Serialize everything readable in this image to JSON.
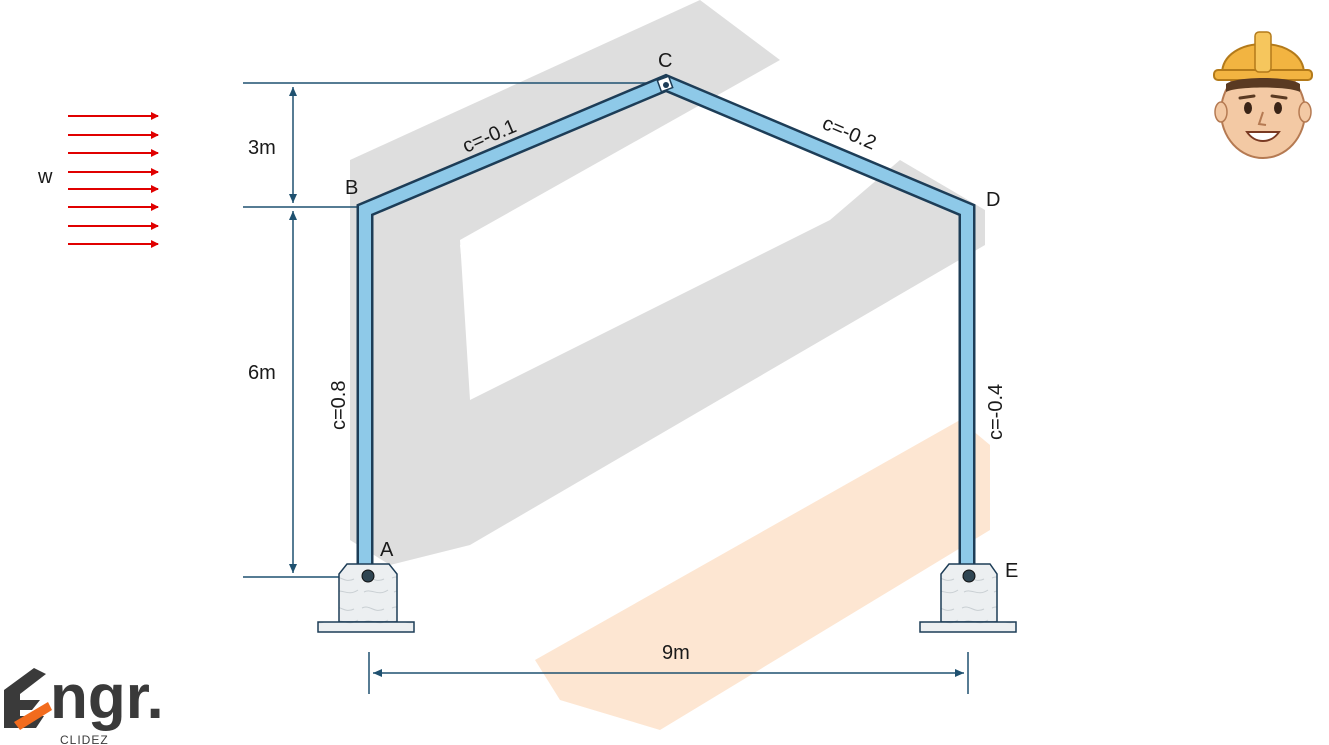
{
  "load": {
    "label": "w",
    "arrow_color": "#e00000",
    "arrow_count": 8
  },
  "nodes": {
    "A": "A",
    "B": "B",
    "C": "C",
    "D": "D",
    "E": "E"
  },
  "coefficients": {
    "AB": "c=0.8",
    "BC": "c=-0.1",
    "CD": "c=-0.2",
    "DE": "c=-0.4"
  },
  "dimensions": {
    "roof_height": "3m",
    "column_height": "6m",
    "span": "9m"
  },
  "colors": {
    "member_fill": "#8ec9e8",
    "member_outline": "#1d3d57",
    "dimension": "#1f5170",
    "watermark_gray": "#dcdcdc",
    "watermark_orange": "#fde6d2",
    "logo_accent": "#f26b1d"
  },
  "logo": {
    "brand": "ngr.",
    "tagline": "CLIDEZ"
  },
  "mascot": {
    "icon": "engineer-mascot-icon"
  }
}
